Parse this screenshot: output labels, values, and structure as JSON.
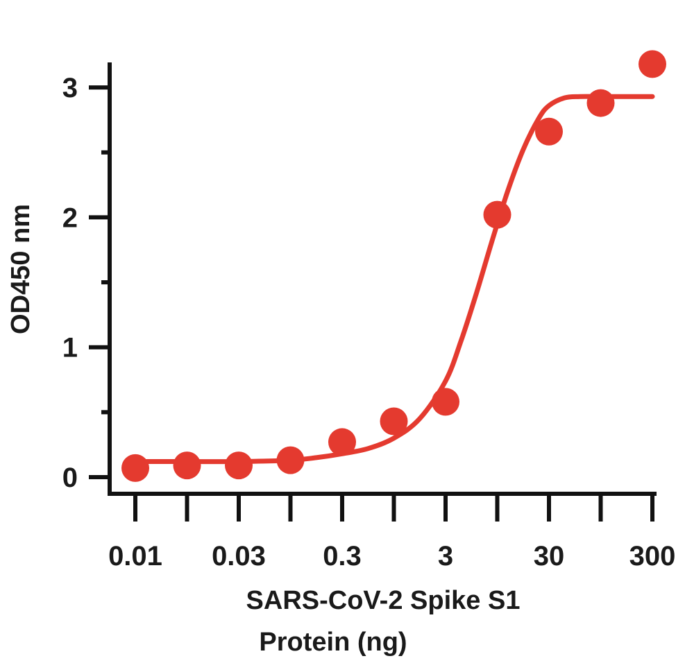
{
  "chart_data": {
    "type": "scatter",
    "title": "",
    "xlabel_lines": [
      "SARS-CoV-2 Spike S1",
      "Protein (ng)"
    ],
    "ylabel": "OD450 nm",
    "x_scale": "log (categorical ticks)",
    "x_tick_labels": [
      "0.01",
      "",
      "0.03",
      "",
      "0.3",
      "",
      "3",
      "",
      "30",
      "",
      "300"
    ],
    "y_ticks": [
      0,
      1,
      2,
      3
    ],
    "y_tick_labels": [
      "0",
      "1",
      "2",
      "3"
    ],
    "ylim": [
      -0.13,
      3.2
    ],
    "grid": false,
    "legend": "none",
    "color": "#e43a2f",
    "points": {
      "x_index": [
        0,
        1,
        2,
        3,
        4,
        5,
        6,
        7,
        8,
        9,
        10
      ],
      "y": [
        0.07,
        0.09,
        0.09,
        0.13,
        0.27,
        0.43,
        0.58,
        2.02,
        2.66,
        2.88,
        3.18
      ]
    },
    "fit_curve": {
      "x_index": [
        0,
        1,
        2,
        3,
        3.5,
        4,
        4.5,
        5,
        5.5,
        6,
        6.3,
        6.6,
        6.9,
        7.2,
        7.5,
        7.8,
        8,
        8.3,
        8.6,
        9,
        10
      ],
      "y": [
        0.12,
        0.12,
        0.12,
        0.13,
        0.15,
        0.18,
        0.22,
        0.3,
        0.45,
        0.74,
        1.05,
        1.42,
        1.82,
        2.2,
        2.52,
        2.76,
        2.86,
        2.92,
        2.93,
        2.93,
        2.93
      ]
    }
  }
}
